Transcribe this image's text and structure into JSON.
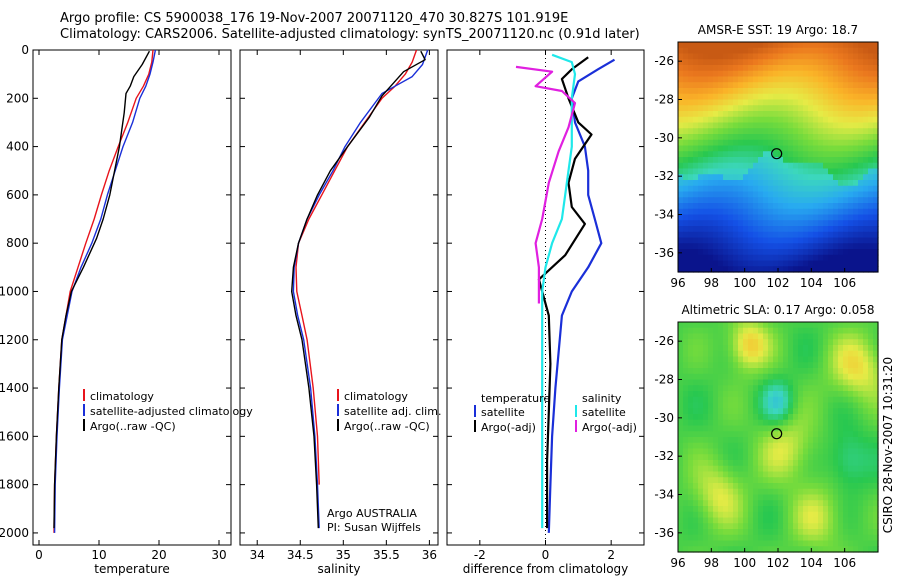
{
  "header": {
    "title_line1": "Argo profile: CS 5900038_176 19-Nov-2007 20071120_470 30.827S 101.919E",
    "title_line2": "Climatology: CARS2006. Satellite-adjusted climatology: synTS_20071120.nc (0.91d later)"
  },
  "side_label": "CSIRO 28-Nov-2007 10:31:20",
  "colors": {
    "climatology": "#e8141c",
    "satellite": "#1a2fd8",
    "argo": "#000000",
    "cyan": "#1fe8ea",
    "magenta": "#e020e0"
  },
  "chart_data": [
    {
      "type": "line",
      "id": "temperature",
      "xlabel": "temperature",
      "ylabel": "",
      "xlim": [
        -1,
        32
      ],
      "ylim": [
        2050,
        0
      ],
      "xticks": [
        0,
        10,
        20,
        30
      ],
      "yticks": [
        0,
        200,
        400,
        600,
        800,
        1000,
        1200,
        1400,
        1600,
        1800,
        2000
      ],
      "legend": {
        "position": "lower-right",
        "entries": [
          "climatology",
          "satellite-adjusted climatology",
          "Argo(..raw -QC)"
        ]
      },
      "series": [
        {
          "name": "climatology",
          "color": "climatology",
          "x": [
            19.0,
            18.8,
            18.3,
            17.4,
            16.2,
            14.8,
            13.2,
            11.7,
            10.4,
            9.2,
            7.8,
            6.5,
            5.2,
            4.5,
            3.8,
            3.3,
            2.9,
            2.6,
            2.5
          ],
          "y": [
            0,
            50,
            100,
            150,
            200,
            300,
            400,
            500,
            600,
            700,
            800,
            900,
            1000,
            1100,
            1200,
            1400,
            1600,
            1800,
            2000
          ]
        },
        {
          "name": "satellite-adjusted climatology",
          "color": "satellite",
          "x": [
            19.4,
            19.0,
            18.5,
            17.8,
            16.8,
            15.6,
            14.0,
            12.7,
            11.4,
            10.3,
            8.8,
            7.0,
            5.5,
            4.7,
            3.9,
            3.4,
            3.0,
            2.7,
            2.6
          ],
          "y": [
            0,
            50,
            100,
            150,
            200,
            300,
            400,
            500,
            600,
            700,
            800,
            900,
            1000,
            1100,
            1200,
            1400,
            1600,
            1800,
            2000
          ]
        },
        {
          "name": "Argo(..raw -QC)",
          "color": "argo",
          "x": [
            18.4,
            17.2,
            15.8,
            15.2,
            14.5,
            14.2,
            13.4,
            12.6,
            11.8,
            10.7,
            9.6,
            7.4,
            5.4,
            4.5,
            3.8,
            3.3,
            2.9,
            2.6,
            2.5
          ],
          "y": [
            5,
            60,
            110,
            150,
            180,
            260,
            400,
            500,
            600,
            700,
            780,
            900,
            1000,
            1100,
            1200,
            1400,
            1600,
            1800,
            1980
          ]
        }
      ]
    },
    {
      "type": "line",
      "id": "salinity",
      "xlabel": "salinity",
      "xlim": [
        33.8,
        36.1
      ],
      "ylim": [
        2050,
        0
      ],
      "xticks": [
        34,
        34.5,
        35,
        35.5,
        36
      ],
      "xticklabels": [
        "34",
        "34.5",
        "35",
        "35.5",
        "36"
      ],
      "legend": {
        "position": "lower-right",
        "entries": [
          "climatology",
          "satellite adj. clim.",
          "Argo(..raw -QC)"
        ]
      },
      "annotations": [
        "Argo AUSTRALIA",
        "PI: Susan Wijffels"
      ],
      "series": [
        {
          "name": "climatology",
          "color": "climatology",
          "x": [
            35.85,
            35.8,
            35.72,
            35.6,
            35.45,
            35.25,
            35.05,
            34.9,
            34.75,
            34.6,
            34.48,
            34.45,
            34.46,
            34.52,
            34.58,
            34.65,
            34.7,
            34.72
          ],
          "y": [
            0,
            50,
            100,
            150,
            200,
            300,
            400,
            500,
            600,
            700,
            800,
            900,
            1000,
            1100,
            1200,
            1400,
            1600,
            1800
          ]
        },
        {
          "name": "satellite adj. clim.",
          "color": "satellite",
          "x": [
            35.98,
            35.92,
            35.8,
            35.6,
            35.45,
            35.2,
            35.02,
            34.88,
            34.72,
            34.58,
            34.48,
            34.43,
            34.42,
            34.47,
            34.54,
            34.62,
            34.67,
            34.7,
            34.72
          ],
          "y": [
            0,
            60,
            110,
            150,
            180,
            300,
            400,
            500,
            600,
            700,
            800,
            900,
            1000,
            1100,
            1200,
            1400,
            1600,
            1800,
            1980
          ]
        },
        {
          "name": "Argo(..raw -QC)",
          "color": "argo",
          "x": [
            35.9,
            35.95,
            35.7,
            35.55,
            35.45,
            35.3,
            35.05,
            34.85,
            34.7,
            34.58,
            34.48,
            34.42,
            34.4,
            34.45,
            34.52,
            34.6,
            34.66,
            34.69,
            34.71
          ],
          "y": [
            5,
            40,
            90,
            150,
            190,
            280,
            400,
            500,
            600,
            700,
            800,
            900,
            1000,
            1100,
            1200,
            1400,
            1600,
            1800,
            1980
          ]
        }
      ]
    },
    {
      "type": "line",
      "id": "difference",
      "xlabel": "difference from climatology",
      "xlim": [
        -3,
        3
      ],
      "ylim": [
        2050,
        0
      ],
      "xticks": [
        -2,
        0,
        2
      ],
      "legend": {
        "position": "lower",
        "entries": [
          "temperature",
          "satellite",
          "Argo(-adj)",
          "salinity",
          "satellite",
          "Argo(-adj)"
        ]
      },
      "series": [
        {
          "name": "temperature satellite",
          "color": "satellite",
          "x": [
            2.1,
            1.6,
            1.0,
            0.8,
            0.9,
            1.2,
            1.3,
            1.3,
            1.5,
            1.7,
            1.3,
            0.8,
            0.5,
            0.3,
            0.2,
            0.15,
            0.1
          ],
          "y": [
            40,
            80,
            130,
            200,
            300,
            400,
            500,
            600,
            700,
            800,
            900,
            1000,
            1100,
            1400,
            1600,
            1800,
            2000
          ]
        },
        {
          "name": "temperature Argo(-adj)",
          "color": "argo",
          "x": [
            1.3,
            0.8,
            0.5,
            0.7,
            1.0,
            1.4,
            0.9,
            0.7,
            0.8,
            1.2,
            0.6,
            -0.2,
            0.1,
            0.15,
            0.1,
            0.05,
            0.05
          ],
          "y": [
            30,
            80,
            120,
            200,
            300,
            350,
            450,
            550,
            650,
            720,
            850,
            950,
            1100,
            1300,
            1500,
            1700,
            1980
          ]
        },
        {
          "name": "salinity satellite",
          "color": "cyan",
          "x": [
            0.2,
            0.8,
            0.9,
            0.8,
            0.8,
            0.8,
            0.7,
            0.6,
            0.5,
            0.2,
            0.0,
            -0.1,
            -0.1,
            -0.1,
            -0.1,
            -0.1
          ],
          "y": [
            20,
            50,
            100,
            200,
            300,
            400,
            500,
            600,
            700,
            800,
            900,
            1000,
            1200,
            1400,
            1600,
            1980
          ]
        },
        {
          "name": "salinity Argo(-adj)",
          "color": "magenta",
          "x": [
            -0.9,
            0.2,
            -0.3,
            0.5,
            0.9,
            0.7,
            0.4,
            0.1,
            -0.1,
            -0.3,
            -0.2,
            -0.2
          ],
          "y": [
            70,
            90,
            150,
            170,
            220,
            320,
            420,
            550,
            700,
            800,
            900,
            1050
          ]
        }
      ]
    },
    {
      "type": "heatmap",
      "id": "sst_map",
      "title": "AMSR-E SST: 19 Argo: 18.7",
      "xlim": [
        96,
        108
      ],
      "ylim": [
        -37,
        -25
      ],
      "xticks": [
        96,
        98,
        100,
        102,
        104,
        106
      ],
      "yticks": [
        -26,
        -28,
        -30,
        -32,
        -34,
        -36
      ],
      "marker": {
        "lon": 101.919,
        "lat": -30.827
      }
    },
    {
      "type": "heatmap",
      "id": "sla_map",
      "title": "Altimetric SLA: 0.17 Argo: 0.058",
      "xlim": [
        96,
        108
      ],
      "ylim": [
        -37,
        -25
      ],
      "xticks": [
        96,
        98,
        100,
        102,
        104,
        106
      ],
      "yticks": [
        -26,
        -28,
        -30,
        -32,
        -34,
        -36
      ],
      "marker": {
        "lon": 101.919,
        "lat": -30.827
      }
    }
  ]
}
